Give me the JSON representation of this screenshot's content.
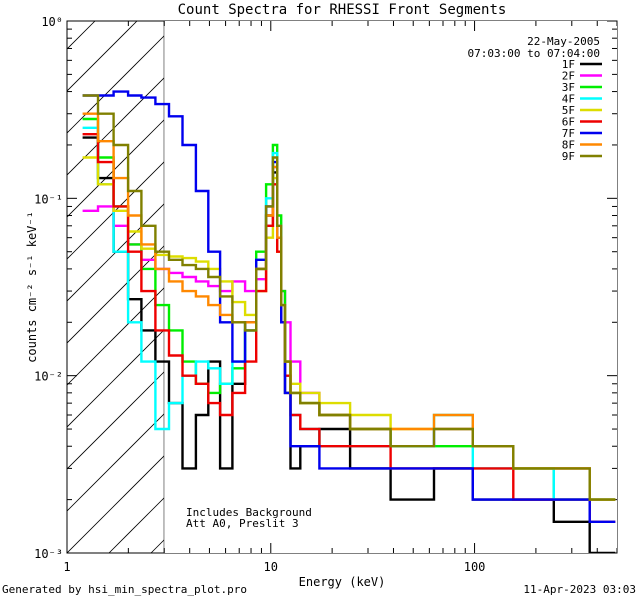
{
  "chart_data": {
    "type": "line",
    "title": "Count Spectra for RHESSI Front Segments",
    "xlabel": "Energy (keV)",
    "ylabel": "counts cm⁻² s⁻¹ keV⁻¹",
    "xscale": "log",
    "yscale": "log",
    "xlim": [
      1,
      500
    ],
    "ylim": [
      0.001,
      1
    ],
    "x_ticks": [
      "1",
      "10",
      "100"
    ],
    "y_ticks": [
      "10⁰",
      "10⁻¹",
      "10⁻²",
      "10⁻³"
    ],
    "date": "22-May-2005",
    "time_range": "07:03:00 to 07:04:00",
    "annotations": [
      "Includes Background",
      "Att A0, Preslit 3"
    ],
    "hatched_region_upper_keV": 3,
    "series": [
      {
        "name": "1F",
        "color": "#000000",
        "x": [
          1.3,
          1.55,
          1.85,
          2.15,
          2.5,
          2.95,
          3.4,
          4.0,
          4.6,
          5.3,
          6.0,
          7.0,
          8.0,
          9.0,
          10.0,
          10.5,
          11.0,
          11.5,
          12.0,
          13.0,
          15.0,
          20.0,
          30.0,
          50.0,
          80.0,
          120.0,
          200.0,
          300.0,
          450.0
        ],
        "values": [
          0.22,
          0.13,
          0.05,
          0.027,
          0.018,
          0.012,
          0.007,
          0.003,
          0.006,
          0.012,
          0.003,
          0.009,
          0.018,
          0.04,
          0.08,
          0.14,
          0.06,
          0.02,
          0.008,
          0.003,
          0.004,
          0.005,
          0.003,
          0.002,
          0.003,
          0.002,
          0.002,
          0.0015,
          0.001
        ]
      },
      {
        "name": "2F",
        "color": "#ff00ff",
        "x": [
          1.3,
          1.55,
          1.85,
          2.15,
          2.5,
          2.95,
          3.4,
          4.0,
          4.6,
          5.3,
          6.0,
          7.0,
          8.0,
          9.0,
          10.0,
          10.5,
          11.0,
          11.5,
          12.0,
          13.0,
          15.0,
          20.0,
          30.0,
          50.0,
          80.0,
          120.0,
          200.0,
          300.0,
          450.0
        ],
        "values": [
          0.085,
          0.09,
          0.07,
          0.055,
          0.045,
          0.04,
          0.038,
          0.036,
          0.034,
          0.032,
          0.03,
          0.034,
          0.03,
          0.035,
          0.07,
          0.15,
          0.06,
          0.03,
          0.02,
          0.012,
          0.008,
          0.006,
          0.005,
          0.004,
          0.005,
          0.004,
          0.003,
          0.003,
          0.002
        ]
      },
      {
        "name": "3F",
        "color": "#00ee00",
        "x": [
          1.3,
          1.55,
          1.85,
          2.15,
          2.5,
          2.95,
          3.4,
          4.0,
          4.6,
          5.3,
          6.0,
          7.0,
          8.0,
          9.0,
          10.0,
          10.5,
          11.0,
          11.5,
          12.0,
          13.0,
          15.0,
          20.0,
          30.0,
          50.0,
          80.0,
          120.0,
          200.0,
          300.0,
          450.0
        ],
        "values": [
          0.28,
          0.17,
          0.09,
          0.055,
          0.04,
          0.025,
          0.018,
          0.012,
          0.009,
          0.008,
          0.009,
          0.011,
          0.02,
          0.05,
          0.12,
          0.2,
          0.08,
          0.03,
          0.012,
          0.008,
          0.007,
          0.006,
          0.005,
          0.004,
          0.004,
          0.004,
          0.003,
          0.002,
          0.002
        ]
      },
      {
        "name": "4F",
        "color": "#00ffff",
        "x": [
          1.3,
          1.55,
          1.85,
          2.15,
          2.5,
          2.95,
          3.4,
          4.0,
          4.6,
          5.3,
          6.0,
          7.0,
          8.0,
          9.0,
          10.0,
          10.5,
          11.0,
          11.5,
          12.0,
          13.0,
          15.0,
          20.0,
          30.0,
          50.0,
          80.0,
          120.0,
          200.0,
          300.0,
          450.0
        ],
        "values": [
          0.25,
          0.12,
          0.05,
          0.02,
          0.012,
          0.005,
          0.007,
          0.01,
          0.012,
          0.011,
          0.009,
          0.012,
          0.018,
          0.045,
          0.1,
          0.18,
          0.07,
          0.025,
          0.01,
          0.006,
          0.005,
          0.004,
          0.004,
          0.004,
          0.006,
          0.003,
          0.003,
          0.002,
          0.002
        ]
      },
      {
        "name": "5F",
        "color": "#dddd00",
        "x": [
          1.3,
          1.55,
          1.85,
          2.15,
          2.5,
          2.95,
          3.4,
          4.0,
          4.6,
          5.3,
          6.0,
          7.0,
          8.0,
          9.0,
          10.0,
          10.5,
          11.0,
          11.5,
          12.0,
          13.0,
          15.0,
          20.0,
          30.0,
          50.0,
          80.0,
          120.0,
          200.0,
          300.0,
          450.0
        ],
        "values": [
          0.17,
          0.12,
          0.085,
          0.065,
          0.052,
          0.048,
          0.047,
          0.046,
          0.044,
          0.04,
          0.034,
          0.026,
          0.022,
          0.03,
          0.06,
          0.13,
          0.05,
          0.02,
          0.012,
          0.009,
          0.008,
          0.007,
          0.006,
          0.005,
          0.005,
          0.004,
          0.003,
          0.003,
          0.002
        ]
      },
      {
        "name": "6F",
        "color": "#ee0000",
        "x": [
          1.3,
          1.55,
          1.85,
          2.15,
          2.5,
          2.95,
          3.4,
          4.0,
          4.6,
          5.3,
          6.0,
          7.0,
          8.0,
          9.0,
          10.0,
          10.5,
          11.0,
          11.5,
          12.0,
          13.0,
          15.0,
          20.0,
          30.0,
          50.0,
          80.0,
          120.0,
          200.0,
          300.0,
          450.0
        ],
        "values": [
          0.23,
          0.16,
          0.09,
          0.05,
          0.03,
          0.018,
          0.013,
          0.01,
          0.009,
          0.007,
          0.006,
          0.008,
          0.012,
          0.03,
          0.07,
          0.12,
          0.05,
          0.02,
          0.01,
          0.006,
          0.005,
          0.004,
          0.004,
          0.003,
          0.003,
          0.003,
          0.002,
          0.002,
          0.0015
        ]
      },
      {
        "name": "7F",
        "color": "#0000ee",
        "x": [
          1.3,
          1.55,
          1.85,
          2.15,
          2.5,
          2.95,
          3.4,
          4.0,
          4.6,
          5.3,
          6.0,
          7.0,
          8.0,
          9.0,
          10.0,
          10.5,
          11.0,
          11.5,
          12.0,
          13.0,
          15.0,
          20.0,
          30.0,
          50.0,
          80.0,
          120.0,
          200.0,
          300.0,
          450.0
        ],
        "values": [
          0.38,
          0.38,
          0.4,
          0.38,
          0.37,
          0.34,
          0.29,
          0.2,
          0.11,
          0.05,
          0.02,
          0.012,
          0.02,
          0.045,
          0.09,
          0.16,
          0.06,
          0.02,
          0.008,
          0.004,
          0.004,
          0.003,
          0.003,
          0.003,
          0.003,
          0.002,
          0.002,
          0.002,
          0.0015
        ]
      },
      {
        "name": "8F",
        "color": "#ff8800",
        "x": [
          1.3,
          1.55,
          1.85,
          2.15,
          2.5,
          2.95,
          3.4,
          4.0,
          4.6,
          5.3,
          6.0,
          7.0,
          8.0,
          9.0,
          10.0,
          10.5,
          11.0,
          11.5,
          12.0,
          13.0,
          15.0,
          20.0,
          30.0,
          50.0,
          80.0,
          120.0,
          200.0,
          300.0,
          450.0
        ],
        "values": [
          0.3,
          0.21,
          0.13,
          0.08,
          0.055,
          0.04,
          0.034,
          0.03,
          0.028,
          0.025,
          0.022,
          0.02,
          0.02,
          0.04,
          0.08,
          0.15,
          0.06,
          0.025,
          0.012,
          0.008,
          0.007,
          0.006,
          0.005,
          0.005,
          0.006,
          0.004,
          0.003,
          0.003,
          0.002
        ]
      },
      {
        "name": "9F",
        "color": "#808000",
        "x": [
          1.3,
          1.55,
          1.85,
          2.15,
          2.5,
          2.95,
          3.4,
          4.0,
          4.6,
          5.3,
          6.0,
          7.0,
          8.0,
          9.0,
          10.0,
          10.5,
          11.0,
          11.5,
          12.0,
          13.0,
          15.0,
          20.0,
          30.0,
          50.0,
          80.0,
          120.0,
          200.0,
          300.0,
          450.0
        ],
        "values": [
          0.38,
          0.3,
          0.2,
          0.11,
          0.07,
          0.05,
          0.045,
          0.042,
          0.04,
          0.036,
          0.028,
          0.02,
          0.018,
          0.04,
          0.09,
          0.17,
          0.07,
          0.025,
          0.012,
          0.008,
          0.007,
          0.006,
          0.005,
          0.004,
          0.005,
          0.004,
          0.003,
          0.003,
          0.002
        ]
      }
    ]
  },
  "footer": {
    "left": "Generated by hsi_min_spectra_plot.pro",
    "right": "11-Apr-2023 03:03"
  }
}
